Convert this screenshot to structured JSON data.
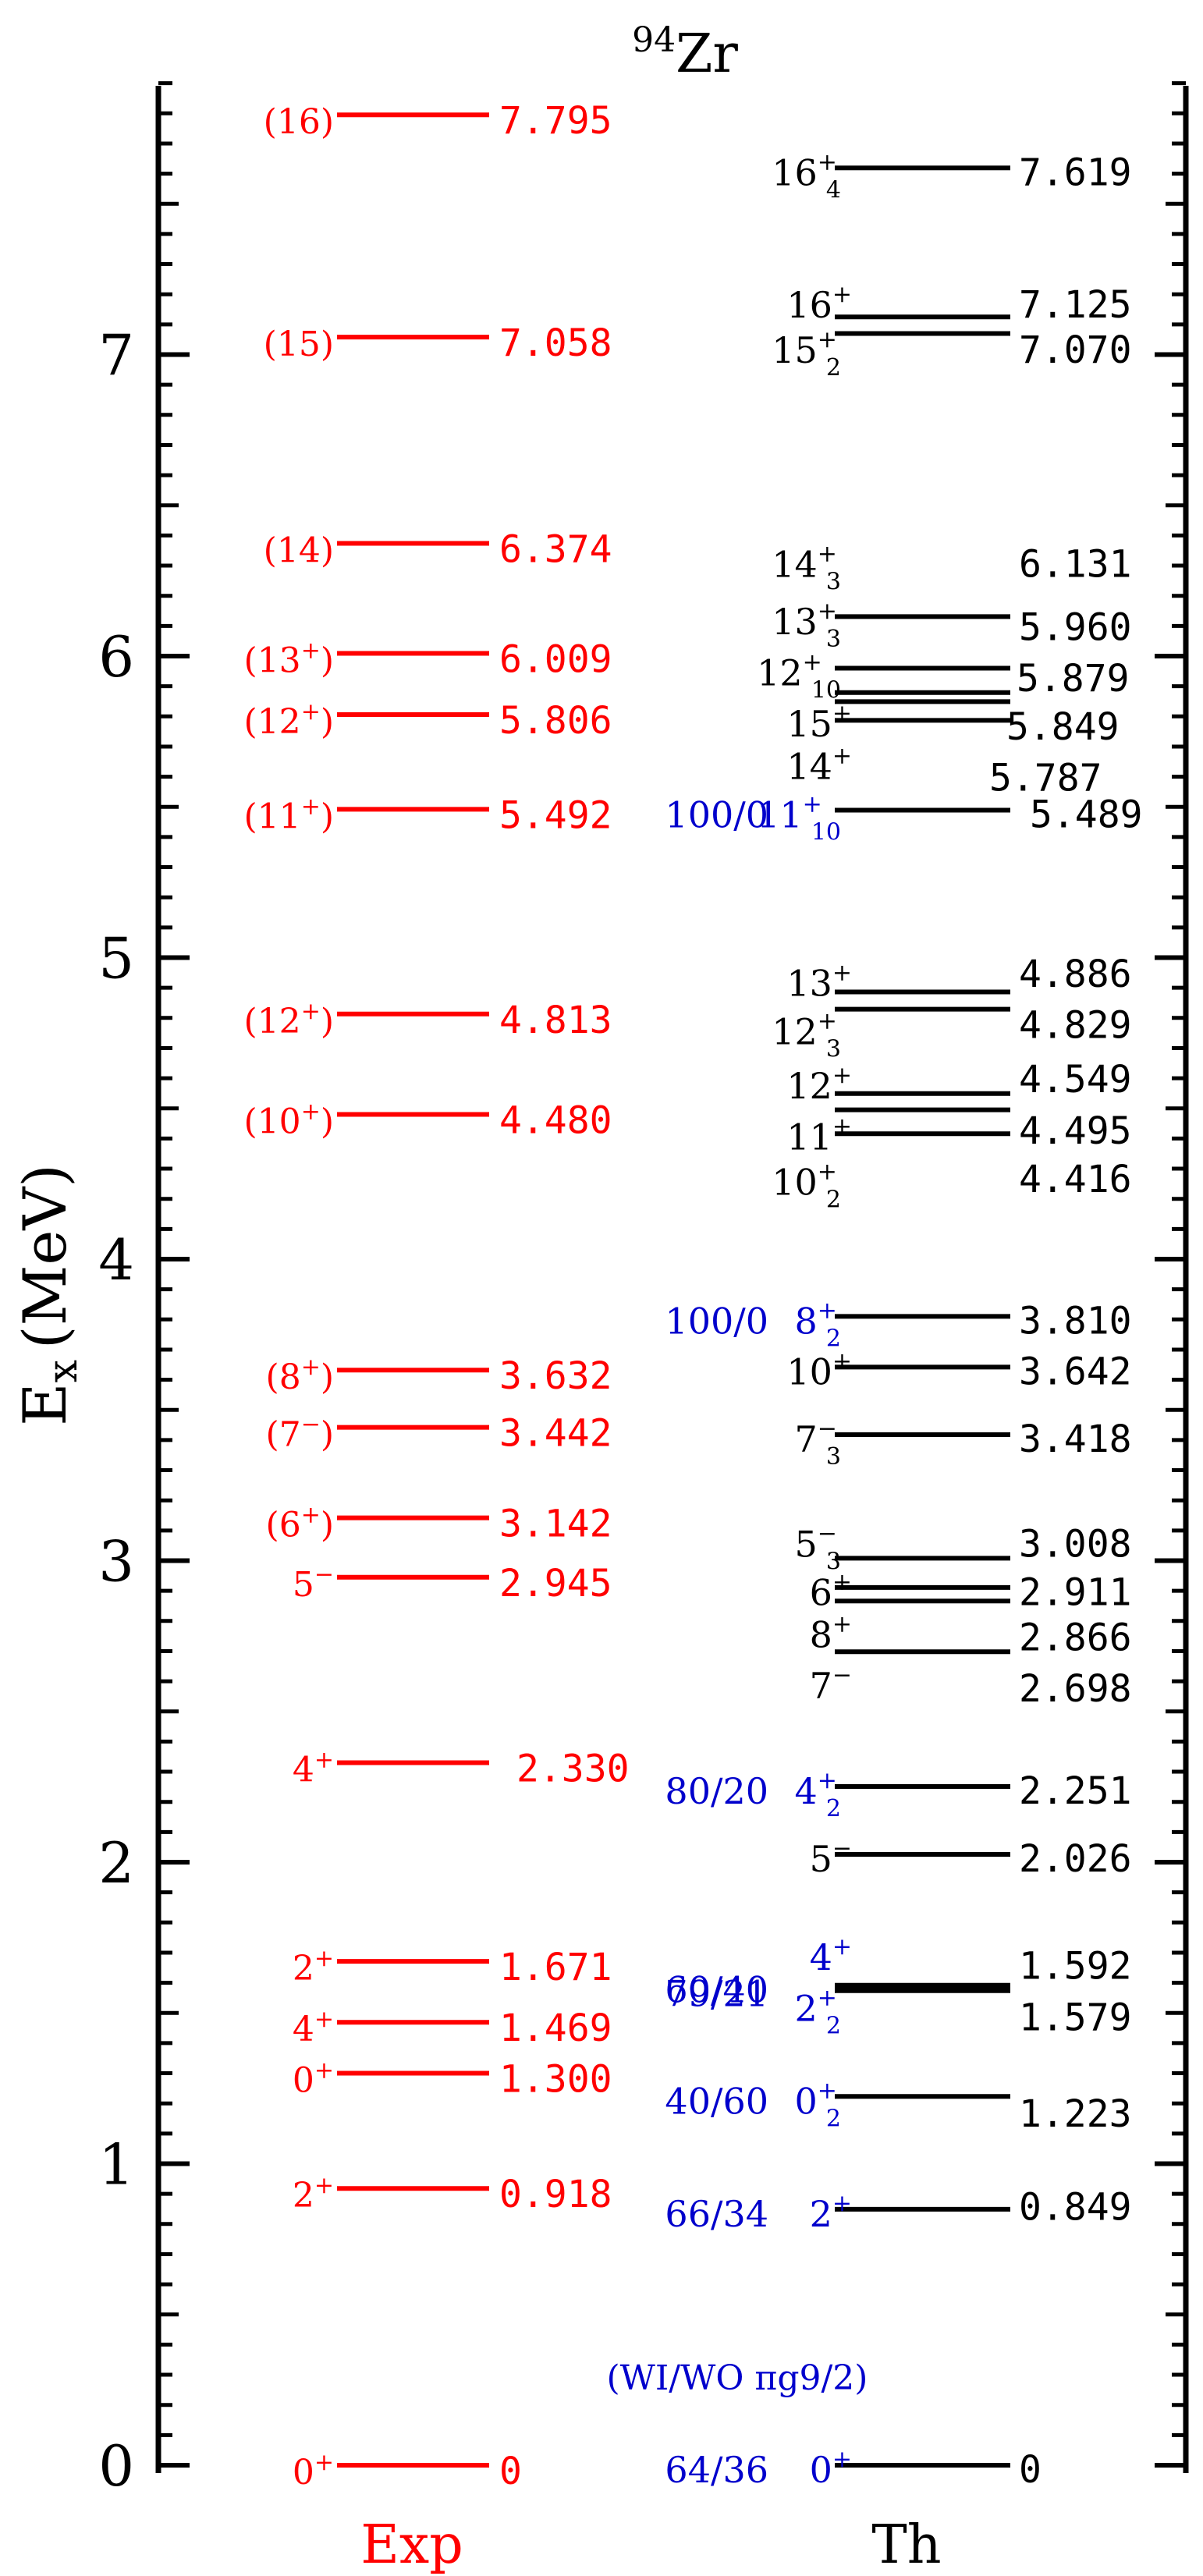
{
  "chart_data": {
    "type": "level_scheme",
    "title_mass": "94",
    "title_element": "Zr",
    "ylabel_main": "E",
    "ylabel_sub": "x",
    "ylabel_unit": "(MeV)",
    "ylim": [
      0,
      7.9
    ],
    "y_major_ticks": [
      0,
      1,
      2,
      3,
      4,
      5,
      6,
      7
    ],
    "y_minor_step": 0.1,
    "grid": false,
    "colors": {
      "exp": "#ff0000",
      "th": "#000000",
      "ratio": "#0000cc",
      "axis": "#000000"
    },
    "columns": [
      {
        "name": "Exp",
        "levels": [
          {
            "spin": "0",
            "parity": "+",
            "paren": false,
            "energy": 0,
            "label": "0"
          },
          {
            "spin": "2",
            "parity": "+",
            "paren": false,
            "energy": 0.918,
            "label": "0.918"
          },
          {
            "spin": "0",
            "parity": "+",
            "paren": false,
            "energy": 1.3,
            "label": "1.300"
          },
          {
            "spin": "4",
            "parity": "+",
            "paren": false,
            "energy": 1.469,
            "label": "1.469"
          },
          {
            "spin": "2",
            "parity": "+",
            "paren": false,
            "energy": 1.671,
            "label": "1.671"
          },
          {
            "spin": "4",
            "parity": "+",
            "paren": false,
            "energy": 2.33,
            "label": "2.330"
          },
          {
            "spin": "5",
            "parity": "−",
            "paren": false,
            "energy": 2.945,
            "label": "2.945"
          },
          {
            "spin": "6",
            "parity": "+",
            "paren": true,
            "energy": 3.142,
            "label": "3.142"
          },
          {
            "spin": "7",
            "parity": "−",
            "paren": true,
            "energy": 3.442,
            "label": "3.442"
          },
          {
            "spin": "8",
            "parity": "+",
            "paren": true,
            "energy": 3.632,
            "label": "3.632"
          },
          {
            "spin": "10",
            "parity": "+",
            "paren": true,
            "energy": 4.48,
            "label": "4.480"
          },
          {
            "spin": "12",
            "parity": "+",
            "paren": true,
            "energy": 4.813,
            "label": "4.813"
          },
          {
            "spin": "11",
            "parity": "+",
            "paren": true,
            "energy": 5.492,
            "label": "5.492"
          },
          {
            "spin": "12",
            "parity": "+",
            "paren": true,
            "energy": 5.806,
            "label": "5.806"
          },
          {
            "spin": "13",
            "parity": "+",
            "paren": true,
            "energy": 6.009,
            "label": "6.009"
          },
          {
            "spin": "14",
            "parity": "",
            "paren": true,
            "energy": 6.374,
            "label": "6.374"
          },
          {
            "spin": "15",
            "parity": "",
            "paren": true,
            "energy": 7.058,
            "label": "7.058"
          },
          {
            "spin": "16",
            "parity": "",
            "paren": true,
            "energy": 7.795,
            "label": "7.795"
          }
        ]
      },
      {
        "name": "Th",
        "annotation_header": "(WI/WO πg9/2)",
        "levels": [
          {
            "spin": "0",
            "parity": "+",
            "index": "",
            "energy": 0,
            "label": "0",
            "ratio": "64/36",
            "highlight": true
          },
          {
            "spin": "2",
            "parity": "+",
            "index": "",
            "energy": 0.849,
            "label": "0.849",
            "ratio": "66/34",
            "highlight": true
          },
          {
            "spin": "0",
            "parity": "+",
            "index": "2",
            "energy": 1.223,
            "label": "1.223",
            "ratio": "40/60",
            "highlight": true
          },
          {
            "spin": "2",
            "parity": "+",
            "index": "2",
            "energy": 1.579,
            "label": "1.579",
            "ratio": "79/21",
            "highlight": true
          },
          {
            "spin": "4",
            "parity": "+",
            "index": "",
            "energy": 1.592,
            "label": "1.592",
            "ratio": "60/40",
            "highlight": true
          },
          {
            "spin": "5",
            "parity": "−",
            "index": "",
            "energy": 2.026,
            "label": "2.026",
            "ratio": "",
            "highlight": false
          },
          {
            "spin": "4",
            "parity": "+",
            "index": "2",
            "energy": 2.251,
            "label": "2.251",
            "ratio": "80/20",
            "highlight": true
          },
          {
            "spin": "7",
            "parity": "−",
            "index": "",
            "energy": 2.698,
            "label": "2.698",
            "ratio": "",
            "highlight": false
          },
          {
            "spin": "8",
            "parity": "+",
            "index": "",
            "energy": 2.866,
            "label": "2.866",
            "ratio": "",
            "highlight": false
          },
          {
            "spin": "6",
            "parity": "+",
            "index": "",
            "energy": 2.911,
            "label": "2.911",
            "ratio": "",
            "highlight": false
          },
          {
            "spin": "5",
            "parity": "−",
            "index": "3",
            "energy": 3.008,
            "label": "3.008",
            "ratio": "",
            "highlight": false
          },
          {
            "spin": "7",
            "parity": "−",
            "index": "3",
            "energy": 3.418,
            "label": "3.418",
            "ratio": "",
            "highlight": false
          },
          {
            "spin": "10",
            "parity": "+",
            "index": "",
            "energy": 3.642,
            "label": "3.642",
            "ratio": "",
            "highlight": false
          },
          {
            "spin": "8",
            "parity": "+",
            "index": "2",
            "energy": 3.81,
            "label": "3.810",
            "ratio": "100/0",
            "highlight": true
          },
          {
            "spin": "10",
            "parity": "+",
            "index": "2",
            "energy": 4.416,
            "label": "4.416",
            "ratio": "",
            "highlight": false
          },
          {
            "spin": "11",
            "parity": "+",
            "index": "",
            "energy": 4.495,
            "label": "4.495",
            "ratio": "",
            "highlight": false
          },
          {
            "spin": "12",
            "parity": "+",
            "index": "",
            "energy": 4.549,
            "label": "4.549",
            "ratio": "",
            "highlight": false
          },
          {
            "spin": "12",
            "parity": "+",
            "index": "3",
            "energy": 4.829,
            "label": "4.829",
            "ratio": "",
            "highlight": false
          },
          {
            "spin": "13",
            "parity": "+",
            "index": "",
            "energy": 4.886,
            "label": "4.886",
            "ratio": "",
            "highlight": false
          },
          {
            "spin": "11",
            "parity": "+",
            "index": "10",
            "energy": 5.489,
            "label": "5.489",
            "ratio": "100/0",
            "highlight": true
          },
          {
            "spin": "14",
            "parity": "+",
            "index": "",
            "energy": 5.787,
            "label": "5.787",
            "ratio": "",
            "highlight": false
          },
          {
            "spin": "15",
            "parity": "+",
            "index": "",
            "energy": 5.849,
            "label": "5.849",
            "ratio": "",
            "highlight": false
          },
          {
            "spin": "12",
            "parity": "+",
            "index": "10",
            "energy": 5.879,
            "label": "5.879",
            "ratio": "",
            "highlight": false
          },
          {
            "spin": "13",
            "parity": "+",
            "index": "3",
            "energy": 5.96,
            "label": "5.960",
            "ratio": "",
            "highlight": false
          },
          {
            "spin": "14",
            "parity": "+",
            "index": "3",
            "energy": 6.131,
            "label": "6.131",
            "ratio": "",
            "highlight": false
          },
          {
            "spin": "15",
            "parity": "+",
            "index": "2",
            "energy": 7.07,
            "label": "7.070",
            "ratio": "",
            "highlight": false
          },
          {
            "spin": "16",
            "parity": "+",
            "index": "",
            "energy": 7.125,
            "label": "7.125",
            "ratio": "",
            "highlight": false
          },
          {
            "spin": "16",
            "parity": "+",
            "index": "4",
            "energy": 7.619,
            "label": "7.619",
            "ratio": "",
            "highlight": false
          }
        ]
      }
    ]
  }
}
